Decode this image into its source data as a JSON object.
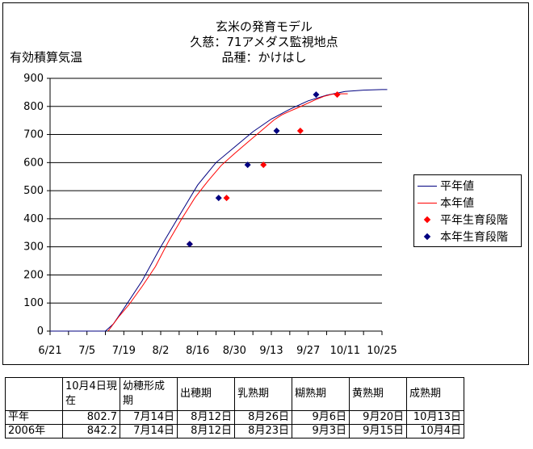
{
  "chart_data": {
    "type": "line",
    "title_lines": [
      "玄米の発育モデル",
      "久慈：71アメダス監視地点",
      "品種：かけはし"
    ],
    "ylabel": "有効積算気温",
    "xlabel": "",
    "ylim": [
      0,
      900
    ],
    "yticks": [
      0,
      100,
      200,
      300,
      400,
      500,
      600,
      700,
      800,
      900
    ],
    "x_ticks": [
      "6/21",
      "7/5",
      "7/19",
      "8/2",
      "8/16",
      "8/30",
      "9/13",
      "9/27",
      "10/11",
      "10/25"
    ],
    "x_tick_day_offset": [
      0,
      14,
      28,
      42,
      56,
      70,
      84,
      98,
      112,
      126
    ],
    "grid": "horizontal",
    "legend_position": "right",
    "series": [
      {
        "name": "平年値",
        "kind": "line",
        "color": "#000080",
        "x": [
          0,
          21,
          24,
          28,
          35,
          42,
          49,
          56,
          63,
          70,
          77,
          84,
          91,
          98,
          105,
          112,
          119,
          126,
          128
        ],
        "y": [
          0,
          0,
          25,
          80,
          180,
          300,
          410,
          520,
          600,
          655,
          710,
          755,
          790,
          820,
          840,
          853,
          858,
          860,
          860
        ]
      },
      {
        "name": "本年値",
        "kind": "line",
        "color": "#ff0000",
        "x": [
          22,
          26,
          30,
          35,
          40,
          45,
          50,
          55,
          60,
          65,
          70,
          75,
          80,
          85,
          88,
          91,
          94,
          98,
          101,
          104,
          107,
          110,
          113
        ],
        "y": [
          0,
          50,
          95,
          160,
          230,
          320,
          400,
          475,
          535,
          590,
          632,
          672,
          712,
          752,
          770,
          783,
          795,
          812,
          825,
          836,
          843,
          845,
          845
        ]
      },
      {
        "name": "平年生育段階",
        "kind": "marker",
        "color": "#ff0000",
        "x": [
          53,
          67,
          81,
          95,
          109
        ],
        "y": [
          310,
          474,
          592,
          713,
          842
        ]
      },
      {
        "name": "本年生育段階",
        "kind": "marker",
        "color": "#000080",
        "x": [
          53,
          64,
          75,
          86,
          101
        ],
        "y": [
          310,
          474,
          592,
          713,
          842
        ]
      }
    ]
  },
  "table": {
    "header": [
      "",
      "10月4日現在",
      "幼穂形成期",
      "出穂期",
      "乳熟期",
      "糊熟期",
      "黄熟期",
      "成熟期"
    ],
    "rows": [
      [
        "平年",
        "802.7",
        "7月14日",
        "8月12日",
        "8月26日",
        "9月6日",
        "9月20日",
        "10月13日"
      ],
      [
        "2006年",
        "842.2",
        "7月14日",
        "8月12日",
        "8月23日",
        "9月3日",
        "9月15日",
        "10月4日"
      ]
    ]
  }
}
